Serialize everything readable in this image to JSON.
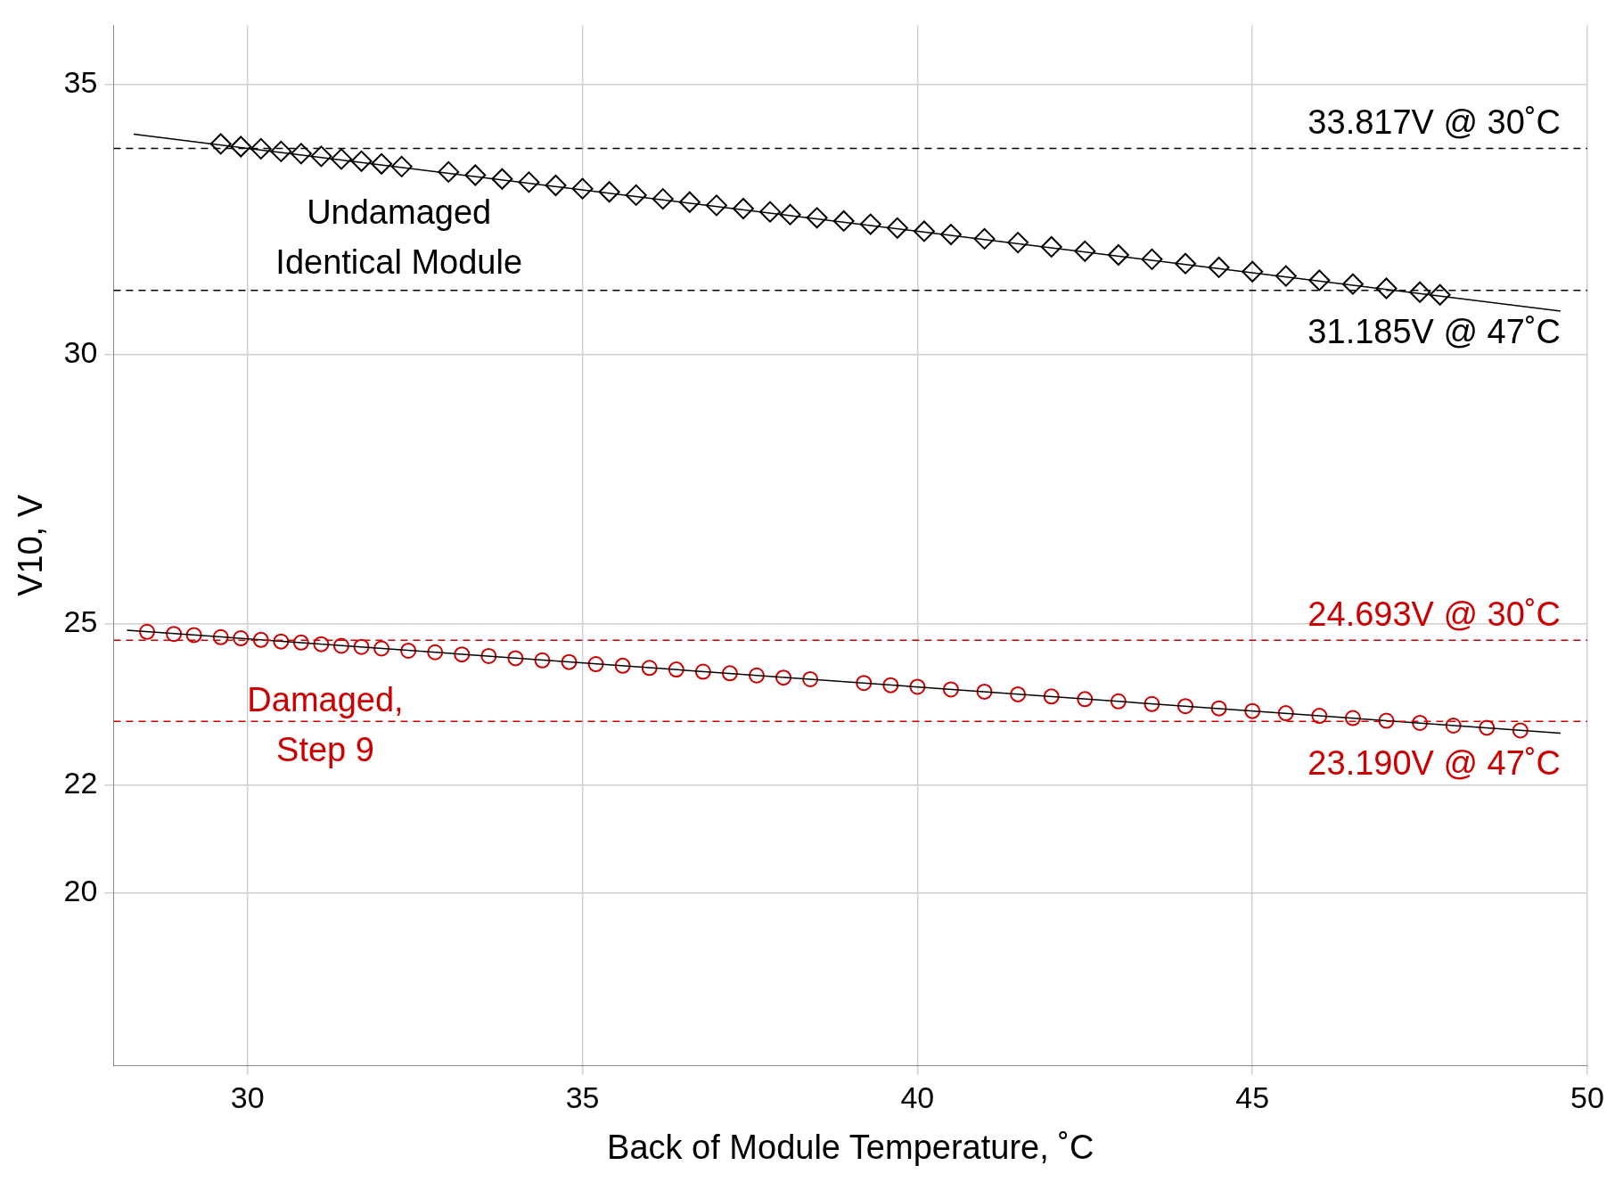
{
  "chart_data": {
    "type": "scatter",
    "xlabel": "Back of Module Temperature, ˚C",
    "ylabel": "V10, V",
    "xlim": [
      28,
      50
    ],
    "xticks": [
      30,
      35,
      40,
      45,
      50
    ],
    "ylim": [
      16.8,
      36.1
    ],
    "yticks": [
      20,
      22,
      25,
      30,
      35
    ],
    "grid": true,
    "legend": false,
    "series": [
      {
        "name": "Undamaged Identical Module",
        "color": "#000000",
        "marker": "diamond",
        "x": [
          29.6,
          29.9,
          30.2,
          30.5,
          30.8,
          31.1,
          31.4,
          31.7,
          32.0,
          32.3,
          33.0,
          33.4,
          33.8,
          34.2,
          34.6,
          35.0,
          35.4,
          35.8,
          36.2,
          36.6,
          37.0,
          37.4,
          37.8,
          38.1,
          38.5,
          38.9,
          39.3,
          39.7,
          40.1,
          40.5,
          41.0,
          41.5,
          42.0,
          42.5,
          43.0,
          43.5,
          44.0,
          44.5,
          45.0,
          45.5,
          46.0,
          46.5,
          47.0,
          47.5,
          47.8
        ],
        "values": [
          33.9,
          33.85,
          33.81,
          33.76,
          33.72,
          33.67,
          33.62,
          33.58,
          33.53,
          33.48,
          33.38,
          33.32,
          33.25,
          33.19,
          33.13,
          33.07,
          33.01,
          32.95,
          32.88,
          32.82,
          32.76,
          32.7,
          32.64,
          32.59,
          32.53,
          32.47,
          32.41,
          32.34,
          32.28,
          32.22,
          32.14,
          32.07,
          31.99,
          31.91,
          31.84,
          31.76,
          31.68,
          31.61,
          31.53,
          31.45,
          31.37,
          31.3,
          31.22,
          31.15,
          31.1
        ]
      },
      {
        "name": "Damaged, Step 9",
        "color": "#cc0000",
        "marker": "circle",
        "x": [
          28.5,
          28.9,
          29.2,
          29.6,
          29.9,
          30.2,
          30.5,
          30.8,
          31.1,
          31.4,
          31.7,
          32.0,
          32.4,
          32.8,
          33.2,
          33.6,
          34.0,
          34.4,
          34.8,
          35.2,
          35.6,
          36.0,
          36.4,
          36.8,
          37.2,
          37.6,
          38.0,
          38.4,
          39.2,
          39.6,
          40.0,
          40.5,
          41.0,
          41.5,
          42.0,
          42.5,
          43.0,
          43.5,
          44.0,
          44.5,
          45.0,
          45.5,
          46.0,
          46.5,
          47.0,
          47.5,
          48.0,
          48.5,
          49.0
        ],
        "values": [
          24.85,
          24.81,
          24.79,
          24.75,
          24.73,
          24.7,
          24.67,
          24.65,
          24.62,
          24.59,
          24.57,
          24.54,
          24.5,
          24.47,
          24.43,
          24.4,
          24.36,
          24.32,
          24.29,
          24.25,
          24.22,
          24.18,
          24.15,
          24.11,
          24.08,
          24.04,
          24.0,
          23.97,
          23.9,
          23.86,
          23.83,
          23.78,
          23.74,
          23.69,
          23.65,
          23.6,
          23.56,
          23.51,
          23.47,
          23.43,
          23.38,
          23.34,
          23.29,
          23.25,
          23.2,
          23.16,
          23.11,
          23.07,
          23.02
        ]
      },
      {
        "type": "line",
        "color": "#000000",
        "marker": "none",
        "x": [
          28.3,
          49.6
        ],
        "values": [
          34.08,
          30.8
        ]
      },
      {
        "type": "line",
        "color": "#000000",
        "marker": "none",
        "x": [
          28.2,
          49.6
        ],
        "values": [
          24.88,
          22.97
        ]
      }
    ],
    "ref_lines": [
      {
        "axis": "y",
        "value": 33.817,
        "label": "33.817V @ 30˚C",
        "color": "#000000",
        "line_style": "dashed"
      },
      {
        "axis": "y",
        "value": 31.185,
        "label": "31.185V @ 47˚C",
        "color": "#000000",
        "line_style": "dashed"
      },
      {
        "axis": "y",
        "value": 24.693,
        "label": "24.693V @ 30˚C",
        "color": "#cc0000",
        "line_style": "dashed"
      },
      {
        "axis": "y",
        "value": 23.19,
        "label": "23.190V @ 47˚C",
        "color": "#cc0000",
        "line_style": "dashed"
      }
    ]
  }
}
